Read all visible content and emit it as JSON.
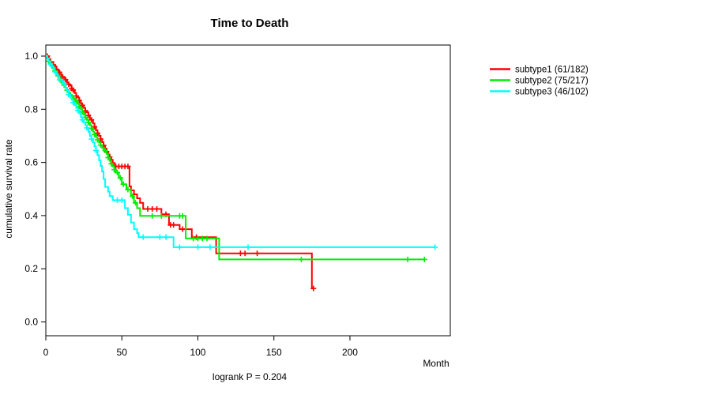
{
  "title": "Time to Death",
  "footer_note": "logrank P = 0.204",
  "chart_data": {
    "type": "line",
    "variant": "kaplan-meier-step",
    "title": "Time to Death",
    "xlabel": "Month",
    "ylabel": "cumulative survival rate",
    "annotation": "logrank P = 0.204",
    "xlim": [
      0,
      266
    ],
    "ylim": [
      0,
      1
    ],
    "x_ticks": [
      0,
      50,
      100,
      150,
      200
    ],
    "y_ticks": [
      1.0,
      0.8,
      0.6,
      0.4,
      0.2,
      0.0
    ],
    "grid": false,
    "legend_position": "right-outside",
    "background": "#ffffff",
    "axis_color": "#000000",
    "series": [
      {
        "name": "subtype1 (61/182)",
        "color": "#ff0000",
        "steps": [
          [
            0,
            1.0
          ],
          [
            2,
            0.989
          ],
          [
            3,
            0.978
          ],
          [
            5,
            0.967
          ],
          [
            6,
            0.961
          ],
          [
            7,
            0.95
          ],
          [
            8,
            0.944
          ],
          [
            9,
            0.939
          ],
          [
            10,
            0.928
          ],
          [
            11,
            0.922
          ],
          [
            12,
            0.917
          ],
          [
            13,
            0.911
          ],
          [
            14,
            0.9
          ],
          [
            15,
            0.894
          ],
          [
            16,
            0.889
          ],
          [
            17,
            0.878
          ],
          [
            18,
            0.872
          ],
          [
            19,
            0.861
          ],
          [
            20,
            0.85
          ],
          [
            21,
            0.844
          ],
          [
            22,
            0.833
          ],
          [
            23,
            0.822
          ],
          [
            24,
            0.815
          ],
          [
            25,
            0.805
          ],
          [
            26,
            0.794
          ],
          [
            27,
            0.788
          ],
          [
            28,
            0.777
          ],
          [
            29,
            0.766
          ],
          [
            30,
            0.76
          ],
          [
            31,
            0.747
          ],
          [
            32,
            0.734
          ],
          [
            33,
            0.721
          ],
          [
            34,
            0.71
          ],
          [
            35,
            0.7
          ],
          [
            36,
            0.688
          ],
          [
            37,
            0.676
          ],
          [
            38,
            0.664
          ],
          [
            39,
            0.652
          ],
          [
            40,
            0.64
          ],
          [
            41,
            0.63
          ],
          [
            42,
            0.62
          ],
          [
            43,
            0.61
          ],
          [
            44,
            0.598
          ],
          [
            45,
            0.585
          ],
          [
            55,
            0.51
          ],
          [
            56,
            0.495
          ],
          [
            58,
            0.48
          ],
          [
            60,
            0.465
          ],
          [
            62,
            0.448
          ],
          [
            64,
            0.425
          ],
          [
            76,
            0.405
          ],
          [
            81,
            0.365
          ],
          [
            88,
            0.349
          ],
          [
            96,
            0.319
          ],
          [
            112,
            0.258
          ],
          [
            175,
            0.126
          ],
          [
            176,
            0.126
          ]
        ],
        "censor_months": [
          1,
          3,
          5,
          7,
          9,
          11,
          13,
          15,
          17,
          18,
          20,
          22,
          24,
          26,
          28,
          30,
          32,
          34,
          36,
          38,
          40,
          42,
          44,
          46,
          48,
          50,
          52,
          54,
          67,
          70,
          73,
          79,
          82,
          84,
          90,
          99,
          128,
          131,
          139,
          176
        ]
      },
      {
        "name": "subtype2 (75/217)",
        "color": "#00ee00",
        "steps": [
          [
            0,
            1.0
          ],
          [
            1,
            0.991
          ],
          [
            2,
            0.981
          ],
          [
            3,
            0.972
          ],
          [
            4,
            0.963
          ],
          [
            5,
            0.954
          ],
          [
            6,
            0.944
          ],
          [
            7,
            0.935
          ],
          [
            8,
            0.926
          ],
          [
            9,
            0.917
          ],
          [
            10,
            0.908
          ],
          [
            11,
            0.899
          ],
          [
            12,
            0.89
          ],
          [
            13,
            0.881
          ],
          [
            14,
            0.872
          ],
          [
            15,
            0.863
          ],
          [
            16,
            0.854
          ],
          [
            17,
            0.848
          ],
          [
            18,
            0.842
          ],
          [
            19,
            0.836
          ],
          [
            20,
            0.83
          ],
          [
            21,
            0.82
          ],
          [
            22,
            0.81
          ],
          [
            23,
            0.8
          ],
          [
            24,
            0.79
          ],
          [
            25,
            0.78
          ],
          [
            26,
            0.77
          ],
          [
            27,
            0.76
          ],
          [
            28,
            0.75
          ],
          [
            29,
            0.74
          ],
          [
            30,
            0.728
          ],
          [
            31,
            0.716
          ],
          [
            32,
            0.705
          ],
          [
            33,
            0.695
          ],
          [
            34,
            0.685
          ],
          [
            35,
            0.675
          ],
          [
            36,
            0.665
          ],
          [
            37,
            0.655
          ],
          [
            38,
            0.645
          ],
          [
            40,
            0.632
          ],
          [
            41,
            0.618
          ],
          [
            42,
            0.606
          ],
          [
            43,
            0.595
          ],
          [
            44,
            0.585
          ],
          [
            45,
            0.573
          ],
          [
            46,
            0.562
          ],
          [
            48,
            0.542
          ],
          [
            50,
            0.518
          ],
          [
            53,
            0.498
          ],
          [
            56,
            0.473
          ],
          [
            58,
            0.448
          ],
          [
            60,
            0.428
          ],
          [
            62,
            0.399
          ],
          [
            92,
            0.314
          ],
          [
            114,
            0.235
          ],
          [
            249,
            0.235
          ]
        ],
        "censor_months": [
          2,
          4,
          6,
          8,
          10,
          12,
          14,
          16,
          18,
          20,
          22,
          24,
          26,
          28,
          30,
          32,
          34,
          36,
          39,
          41,
          43,
          45,
          47,
          49,
          51,
          54,
          57,
          59,
          70,
          76,
          88,
          90,
          97,
          100,
          103,
          106,
          168,
          238,
          249
        ]
      },
      {
        "name": "subtype3 (46/102)",
        "color": "#00ffff",
        "steps": [
          [
            0,
            1.0
          ],
          [
            1,
            0.99
          ],
          [
            2,
            0.98
          ],
          [
            3,
            0.97
          ],
          [
            4,
            0.961
          ],
          [
            5,
            0.951
          ],
          [
            6,
            0.941
          ],
          [
            7,
            0.931
          ],
          [
            8,
            0.921
          ],
          [
            9,
            0.911
          ],
          [
            11,
            0.896
          ],
          [
            13,
            0.88
          ],
          [
            14,
            0.87
          ],
          [
            15,
            0.855
          ],
          [
            16,
            0.845
          ],
          [
            17,
            0.835
          ],
          [
            18,
            0.825
          ],
          [
            19,
            0.815
          ],
          [
            20,
            0.805
          ],
          [
            21,
            0.795
          ],
          [
            22,
            0.785
          ],
          [
            23,
            0.77
          ],
          [
            24,
            0.76
          ],
          [
            25,
            0.75
          ],
          [
            26,
            0.74
          ],
          [
            27,
            0.73
          ],
          [
            28,
            0.715
          ],
          [
            29,
            0.7
          ],
          [
            30,
            0.688
          ],
          [
            31,
            0.676
          ],
          [
            32,
            0.66
          ],
          [
            33,
            0.645
          ],
          [
            34,
            0.627
          ],
          [
            35,
            0.608
          ],
          [
            36,
            0.587
          ],
          [
            37,
            0.566
          ],
          [
            38,
            0.537
          ],
          [
            39,
            0.508
          ],
          [
            41,
            0.49
          ],
          [
            42,
            0.473
          ],
          [
            44,
            0.458
          ],
          [
            52,
            0.428
          ],
          [
            54,
            0.403
          ],
          [
            56,
            0.374
          ],
          [
            58,
            0.349
          ],
          [
            60,
            0.334
          ],
          [
            61,
            0.319
          ],
          [
            84,
            0.281
          ],
          [
            256,
            0.281
          ]
        ],
        "censor_months": [
          3,
          6,
          9,
          12,
          15,
          18,
          21,
          24,
          27,
          30,
          33,
          47,
          50,
          64,
          75,
          79,
          88,
          100,
          108,
          133,
          256
        ]
      }
    ]
  }
}
